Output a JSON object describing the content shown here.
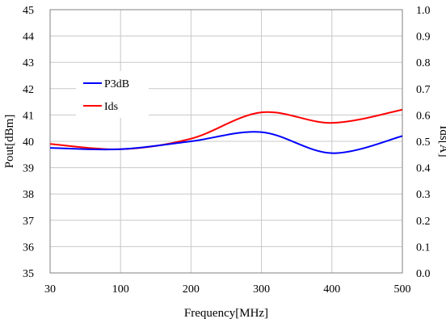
{
  "chart_data": {
    "type": "line",
    "xlabel": "Frequency[MHz]",
    "ylabel_left": "Pout[dBm]",
    "ylabel_right": "Ids[A]",
    "x_categories": [
      "30",
      "100",
      "200",
      "300",
      "400",
      "500"
    ],
    "y_left_range": [
      35,
      45
    ],
    "y_left_ticks": [
      "35",
      "36",
      "37",
      "38",
      "39",
      "40",
      "41",
      "42",
      "43",
      "44",
      "45"
    ],
    "y_right_range": [
      0.0,
      1.0
    ],
    "y_right_ticks": [
      "0.0",
      "0.1",
      "0.2",
      "0.3",
      "0.4",
      "0.5",
      "0.6",
      "0.7",
      "0.8",
      "0.9",
      "1.0"
    ],
    "grid": true,
    "legend_position": "left",
    "series": [
      {
        "name": "P3dB",
        "axis": "left",
        "color": "#0000ff",
        "x": [
          "30",
          "100",
          "200",
          "300",
          "400",
          "500"
        ],
        "values": [
          39.75,
          39.7,
          40.0,
          40.35,
          39.55,
          40.2
        ]
      },
      {
        "name": "Ids",
        "axis": "right",
        "color": "#ff0000",
        "x": [
          "30",
          "100",
          "200",
          "300",
          "400",
          "500"
        ],
        "values": [
          0.49,
          0.47,
          0.51,
          0.61,
          0.57,
          0.62
        ]
      }
    ]
  }
}
